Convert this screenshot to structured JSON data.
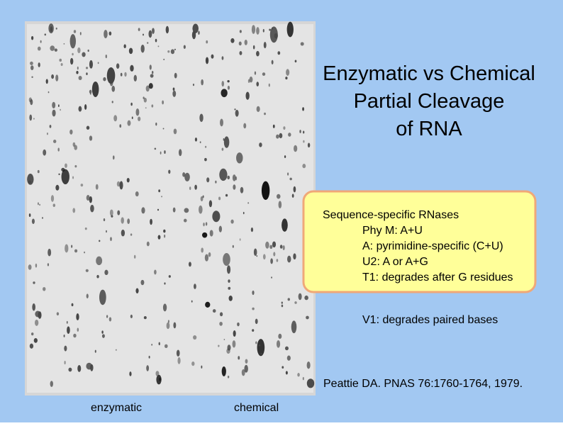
{
  "slide": {
    "title": [
      "Enzymatic vs Chemical",
      "Partial Cleavage",
      "of RNA"
    ],
    "box": {
      "heading": "Sequence-specific RNases",
      "items": [
        "Phy M: A+U",
        "A: pyrimidine-specific (C+U)",
        "U2: A or A+G",
        "T1: degrades after G residues"
      ]
    },
    "note": "V1: degrades paired bases",
    "citation": "Peattie DA. PNAS 76:1760-1764, 1979.",
    "labels": [
      "enzymatic",
      "chemical"
    ]
  }
}
